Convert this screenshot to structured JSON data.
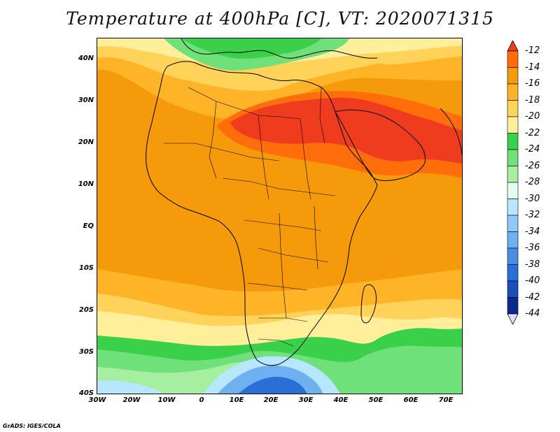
{
  "title": "Temperature at 400hPa [C], VT: 2020071315",
  "credit": "GrADS: IGES/COLA",
  "y_axis_labels": [
    "40N",
    "30N",
    "20N",
    "10N",
    "EQ",
    "10S",
    "20S",
    "30S",
    "40S"
  ],
  "x_axis_labels": [
    "30W",
    "20W",
    "10W",
    "0",
    "10E",
    "20E",
    "30E",
    "40E",
    "50E",
    "60E",
    "70E"
  ],
  "colorbar": {
    "levels": [
      "-12",
      "-14",
      "-16",
      "-18",
      "-20",
      "-22",
      "-24",
      "-26",
      "-28",
      "-30",
      "-32",
      "-34",
      "-36",
      "-38",
      "-40",
      "-42",
      "-44"
    ],
    "colors": [
      "#f03c1e",
      "#ff6e0a",
      "#f59a0a",
      "#ffb428",
      "#ffd25a",
      "#ffef9a",
      "#3ad04a",
      "#6fe07a",
      "#a6efa0",
      "#e6fbf0",
      "#b7e6ff",
      "#90c8f7",
      "#6eb0f0",
      "#4a8ee3",
      "#2a6fd6",
      "#1a4fb8",
      "#0a2b8c",
      "#0a1a66"
    ],
    "top_arrow_color": "#f03c1e",
    "bottom_arrow_color": "#e0ddff"
  },
  "map_colors": {
    "hot": "#f03c1e",
    "orange_red": "#ff6e0a",
    "orange": "#f59a0a",
    "light_orange": "#ffb428",
    "yellow": "#ffd25a",
    "pale_yellow": "#ffef9a",
    "green": "#3ad04a",
    "mid_green": "#6fe07a",
    "light_green": "#a6efa0",
    "cold_light": "#b7e6ff",
    "cold_mid": "#6eb0f0",
    "cold_dark": "#2a6fd6"
  }
}
